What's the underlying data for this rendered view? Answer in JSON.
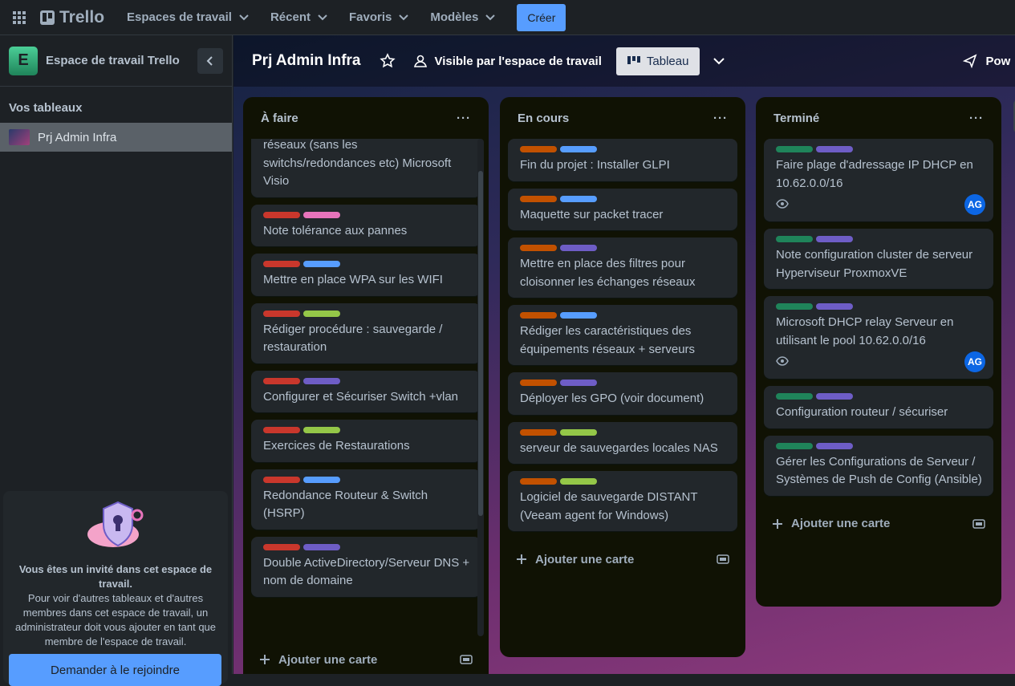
{
  "topbar": {
    "logo": "Trello",
    "nav": [
      "Espaces de travail",
      "Récent",
      "Favoris",
      "Modèles"
    ],
    "create": "Créer"
  },
  "sidebar": {
    "workspace_initial": "E",
    "workspace_name": "Espace de travail Trello",
    "section": "Vos tableaux",
    "boards": [
      "Prj Admin Infra"
    ],
    "invite": {
      "title": "Vous êtes un invité dans cet espace de travail.",
      "text": "Pour voir d'autres tableaux et d'autres membres dans cet espace de travail, un administrateur doit vous ajouter en tant que membre de l'espace de travail.",
      "button": "Demander à le rejoindre"
    }
  },
  "board": {
    "title": "Prj Admin Infra",
    "visibility": "Visible par l'espace de travail",
    "view": "Tableau",
    "powerups": "Pow",
    "lists": [
      {
        "title": "À faire",
        "add_card": "Ajouter une carte",
        "cards": [
          {
            "labels": [],
            "text": "réseaux (sans les switchs/redondances etc) Microsoft Visio"
          },
          {
            "labels": [
              "#c9372c",
              "#e774bb"
            ],
            "text": "Note tolérance aux pannes"
          },
          {
            "labels": [
              "#c9372c",
              "#579dff"
            ],
            "text": "Mettre en place WPA sur les WIFI"
          },
          {
            "labels": [
              "#c9372c",
              "#94c748"
            ],
            "text": "Rédiger procédure : sauvegarde / restauration"
          },
          {
            "labels": [
              "#c9372c",
              "#6e5dc6"
            ],
            "text": "Configurer et Sécuriser Switch +vlan"
          },
          {
            "labels": [
              "#c9372c",
              "#94c748"
            ],
            "text": "Exercices de Restaurations"
          },
          {
            "labels": [
              "#c9372c",
              "#579dff"
            ],
            "text": "Redondance Routeur & Switch (HSRP)"
          },
          {
            "labels": [
              "#c9372c",
              "#6e5dc6"
            ],
            "text": "Double ActiveDirectory/Serveur DNS + nom de domaine"
          }
        ]
      },
      {
        "title": "En cours",
        "add_card": "Ajouter une carte",
        "cards": [
          {
            "labels": [
              "#c25100",
              "#579dff"
            ],
            "text": "Fin du projet : Installer GLPI"
          },
          {
            "labels": [
              "#c25100",
              "#579dff"
            ],
            "text": "Maquette sur packet tracer"
          },
          {
            "labels": [
              "#c25100",
              "#6e5dc6"
            ],
            "text": "Mettre en place des filtres pour cloisonner les échanges réseaux"
          },
          {
            "labels": [
              "#c25100",
              "#579dff"
            ],
            "text": "Rédiger les caractéristiques des équipements réseaux + serveurs"
          },
          {
            "labels": [
              "#c25100",
              "#6e5dc6"
            ],
            "text": "Déployer les GPO (voir document)"
          },
          {
            "labels": [
              "#c25100",
              "#94c748"
            ],
            "text": "serveur de sauvegardes locales NAS"
          },
          {
            "labels": [
              "#c25100",
              "#94c748"
            ],
            "text": "Logiciel de sauvegarde DISTANT (Veeam agent for Windows)"
          }
        ]
      },
      {
        "title": "Terminé",
        "add_card": "Ajouter une carte",
        "cards": [
          {
            "labels": [
              "#1f845a",
              "#6e5dc6"
            ],
            "text": "Faire plage d'adressage IP DHCP en 10.62.0.0/16",
            "member": "AG"
          },
          {
            "labels": [
              "#1f845a",
              "#6e5dc6"
            ],
            "text": "Note configuration cluster de serveur Hyperviseur ProxmoxVE"
          },
          {
            "labels": [
              "#1f845a",
              "#6e5dc6"
            ],
            "text": "Microsoft DHCP relay Serveur en utilisant le pool 10.62.0.0/16",
            "member": "AG"
          },
          {
            "labels": [
              "#1f845a",
              "#6e5dc6"
            ],
            "text": "Configuration routeur / sécuriser"
          },
          {
            "labels": [
              "#1f845a",
              "#6e5dc6"
            ],
            "text": "Gérer les Configurations de Serveur / Systèmes de Push de Config (Ansible)"
          }
        ]
      }
    ]
  }
}
